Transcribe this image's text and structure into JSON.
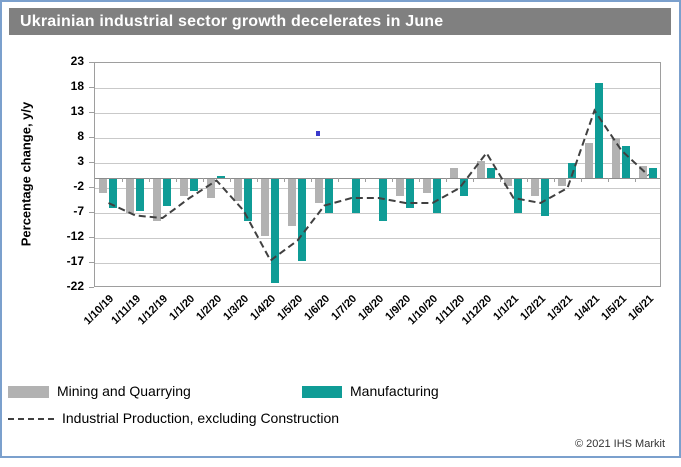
{
  "header": {
    "title": "Ukrainian industrial sector growth decelerates in June"
  },
  "footer": {
    "copyright": "© 2021 IHS Markit"
  },
  "colors": {
    "header_bg": "#808080",
    "header_text": "#ffffff",
    "mining_bar": "#b2b2b2",
    "manufacturing_bar": "#0f9c96",
    "industrial_line": "#404040",
    "gridline": "#c9c9c9",
    "plot_border": "#9e9e9e",
    "frame_border": "#7ba0cd",
    "artifact_dot": "#3a3acc"
  },
  "chart_data": {
    "type": "bar",
    "title": "Ukrainian industrial sector growth decelerates in June",
    "xlabel": "",
    "ylabel": "Percentage change, y/y",
    "ylim": [
      -22,
      23
    ],
    "yticks": [
      23,
      18,
      13,
      8,
      3,
      -2,
      -7,
      -12,
      -17,
      -22
    ],
    "grid": true,
    "legend_position": "bottom",
    "categories": [
      "1/10/19",
      "1/11/19",
      "1/12/19",
      "1/1/20",
      "1/2/20",
      "1/3/20",
      "1/4/20",
      "1/5/20",
      "1/6/20",
      "1/7/20",
      "1/8/20",
      "1/9/20",
      "1/10/20",
      "1/11/20",
      "1/12/20",
      "1/1/21",
      "1/2/21",
      "1/3/21",
      "1/4/21",
      "1/5/21",
      "1/6/21"
    ],
    "series": [
      {
        "name": "Mining and Quarrying",
        "type": "bar",
        "color": "#b2b2b2",
        "values": [
          -3,
          -7,
          -8.5,
          -3.5,
          -4,
          -4.5,
          -11.5,
          -9.5,
          -5,
          0,
          0,
          -3.5,
          -3,
          2,
          3.5,
          -1.5,
          -3.5,
          -1.5,
          7,
          8,
          2.5
        ]
      },
      {
        "name": "Manufacturing",
        "type": "bar",
        "color": "#0f9c96",
        "values": [
          -6,
          -6.5,
          -5.5,
          -2.5,
          0.5,
          -8.5,
          -21,
          -16.5,
          -7,
          -7,
          -8.5,
          -6,
          -7,
          -3.5,
          2,
          -7,
          -7.5,
          3,
          19,
          6.5,
          2
        ]
      },
      {
        "name": "Industrial Production, excluding Construction",
        "type": "line",
        "style": "dashed",
        "color": "#404040",
        "values": [
          -5,
          -7.5,
          -8,
          -4,
          -0.5,
          -6.5,
          -16.5,
          -12.5,
          -5.5,
          -4,
          -4,
          -5,
          -5,
          -2,
          5,
          -4,
          -5,
          -2,
          13.5,
          5.5,
          0.5
        ]
      }
    ],
    "annotations": [
      {
        "type": "dot",
        "x": 316,
        "y": 131,
        "color": "#3a3acc"
      }
    ]
  }
}
